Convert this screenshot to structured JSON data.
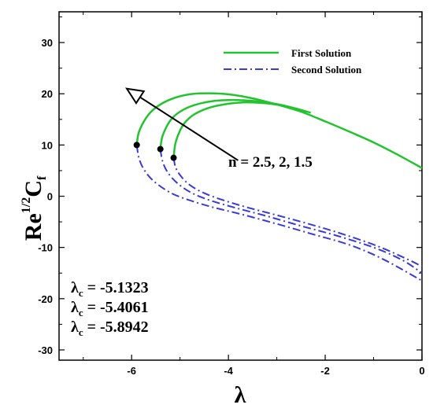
{
  "chart_data": {
    "type": "line",
    "title": "",
    "xlabel": "λ",
    "ylabel_main": "Re",
    "ylabel_sup": "1/2",
    "ylabel_c": "C",
    "ylabel_sub": "f",
    "xlim": [
      -7.5,
      0
    ],
    "ylim": [
      -32,
      36
    ],
    "x_ticks": [
      -6,
      -4,
      -2,
      0
    ],
    "x_tick_labels": [
      "-6",
      "-4",
      "-2",
      "0"
    ],
    "y_ticks": [
      -30,
      -20,
      -10,
      0,
      10,
      20,
      30
    ],
    "y_tick_labels": [
      "-30",
      "-20",
      "-10",
      "0",
      "10",
      "20",
      "30"
    ],
    "grid": false,
    "legend_position": "top-right",
    "legend": [
      {
        "label": "First Solution",
        "color": "#22c32e",
        "style": "solid"
      },
      {
        "label": "Second Solution",
        "color": "#3a3ad6",
        "style": "dashdot"
      }
    ],
    "arrow_label": "n = 2.5, 2, 1.5",
    "critical_values": [
      {
        "symbol": "λ",
        "sub": "c",
        "text": " = -5.1323"
      },
      {
        "symbol": "λ",
        "sub": "c",
        "text": " = -5.4061"
      },
      {
        "symbol": "λ",
        "sub": "c",
        "text": " = -5.8942"
      }
    ],
    "critical_points": [
      {
        "x": -5.8942,
        "y": 10.0
      },
      {
        "x": -5.4061,
        "y": 9.2
      },
      {
        "x": -5.1323,
        "y": 7.5
      }
    ],
    "series": [
      {
        "name": "First Solution",
        "n": "2.5",
        "kind": "first",
        "color": "#22c32e",
        "x": [
          -5.8942,
          -5.85,
          -5.7,
          -5.5,
          -5.2,
          -4.8,
          -4.4,
          -4.0,
          -3.5,
          -3.0,
          -2.5,
          -2.0,
          -1.5,
          -1.0,
          -0.5,
          0
        ],
        "y": [
          10.0,
          12.5,
          15.3,
          17.3,
          18.9,
          19.9,
          20.1,
          19.9,
          19.1,
          17.9,
          16.5,
          14.6,
          12.6,
          10.5,
          8.1,
          5.5
        ]
      },
      {
        "name": "First Solution",
        "n": "2",
        "kind": "first",
        "color": "#22c32e",
        "x": [
          -5.4061,
          -5.36,
          -5.2,
          -5.0,
          -4.7,
          -4.3,
          -3.9,
          -3.5,
          -3.0,
          -2.6,
          -2.3
        ],
        "y": [
          9.2,
          11.8,
          14.8,
          16.5,
          17.8,
          18.6,
          18.8,
          18.6,
          18.0,
          17.1,
          16.3
        ]
      },
      {
        "name": "First Solution",
        "n": "1.5",
        "kind": "first",
        "color": "#22c32e",
        "x": [
          -5.1323,
          -5.09,
          -4.95,
          -4.75,
          -4.45,
          -4.1,
          -3.7,
          -3.3,
          -2.9,
          -2.6,
          -2.4
        ],
        "y": [
          7.5,
          10.5,
          13.7,
          15.7,
          17.1,
          17.9,
          18.3,
          18.2,
          17.7,
          16.9,
          16.3
        ]
      },
      {
        "name": "Second Solution",
        "n": "2.5",
        "kind": "second",
        "color": "#3a3ad6",
        "x": [
          -5.8942,
          -5.85,
          -5.75,
          -5.55,
          -5.2,
          -4.8,
          -4.3,
          -3.7,
          -3.0,
          -2.3,
          -1.5,
          -0.8,
          0
        ],
        "y": [
          10.0,
          7.5,
          5.3,
          3.0,
          0.7,
          -0.8,
          -2.2,
          -3.6,
          -5.4,
          -7.3,
          -9.5,
          -12.3,
          -16.5
        ]
      },
      {
        "name": "Second Solution",
        "n": "2",
        "kind": "second",
        "color": "#3a3ad6",
        "x": [
          -5.4061,
          -5.36,
          -5.25,
          -5.05,
          -4.75,
          -4.35,
          -3.8,
          -3.2,
          -2.5,
          -1.8,
          -1.0,
          -0.4,
          0
        ],
        "y": [
          9.2,
          6.8,
          4.6,
          2.5,
          0.6,
          -0.9,
          -2.4,
          -3.9,
          -5.8,
          -7.6,
          -10.0,
          -12.5,
          -15.0
        ]
      },
      {
        "name": "Second Solution",
        "n": "1.5",
        "kind": "second",
        "color": "#3a3ad6",
        "x": [
          -5.1323,
          -5.09,
          -4.98,
          -4.8,
          -4.5,
          -4.1,
          -3.6,
          -3.0,
          -2.3,
          -1.6,
          -0.9,
          -0.3,
          0
        ],
        "y": [
          7.5,
          5.6,
          3.9,
          2.2,
          0.6,
          -0.8,
          -2.2,
          -3.7,
          -5.5,
          -7.5,
          -9.8,
          -12.3,
          -13.7
        ]
      }
    ],
    "arrow": {
      "from": {
        "x": -3.8,
        "y": 7
      },
      "to": {
        "x": -6.1,
        "y": 21
      }
    }
  }
}
